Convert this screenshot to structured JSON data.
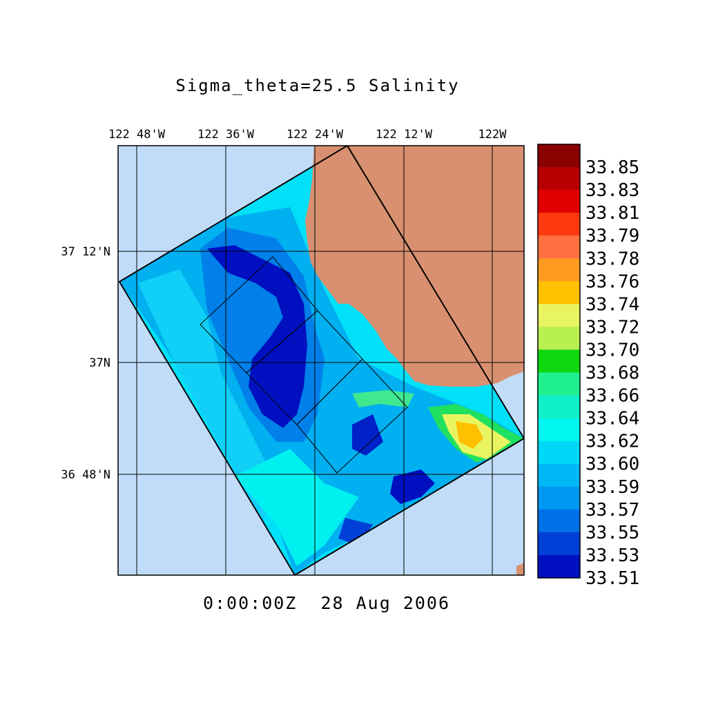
{
  "title": "Sigma_theta=25.5 Salinity",
  "timestamp": "0:00:00Z  28 Aug 2006",
  "lon_labels": [
    "122 48'W",
    "122 36'W",
    "122 24'W",
    "122 12'W",
    "122W"
  ],
  "lat_labels": [
    "37 12'N",
    "37N",
    "36 48'N"
  ],
  "colorbar": {
    "labels": [
      "33.85",
      "33.83",
      "33.81",
      "33.79",
      "33.78",
      "33.76",
      "33.74",
      "33.72",
      "33.70",
      "33.68",
      "33.66",
      "33.64",
      "33.62",
      "33.60",
      "33.59",
      "33.57",
      "33.55",
      "33.53",
      "33.51"
    ],
    "colors": [
      "#8b0000",
      "#b80000",
      "#e00000",
      "#ff3a10",
      "#ff7040",
      "#ff9a20",
      "#ffc000",
      "#e8f560",
      "#b8f050",
      "#10d810",
      "#20f090",
      "#10f0c8",
      "#00f8f0",
      "#00d8f8",
      "#00b8f8",
      "#0098f0",
      "#0070e8",
      "#0040d8",
      "#0010c0"
    ]
  },
  "colors": {
    "ocean": "#c0dcf8",
    "land": "#d89070",
    "field_base": "#00d0f8"
  }
}
